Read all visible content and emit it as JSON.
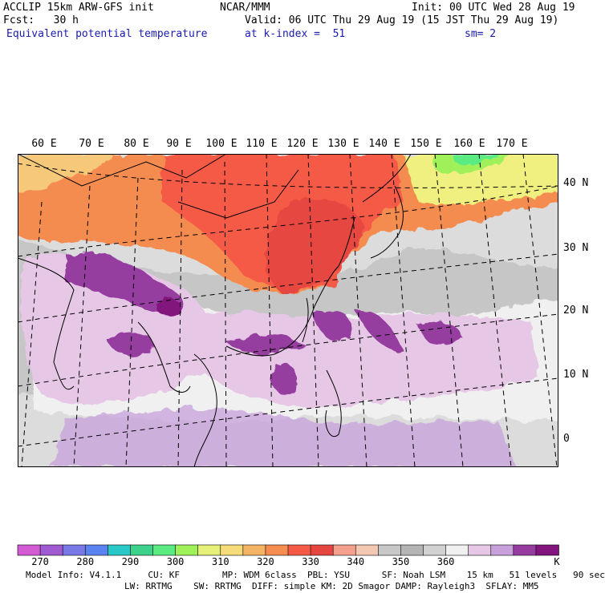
{
  "header": {
    "line1_left": "ACCLIP 15km ARW-GFS init",
    "line1_center": "NCAR/MMM",
    "line1_right": "Init: 00 UTC Wed 28 Aug 19",
    "line2_left": "Fcst:   30 h",
    "line2_right": "Valid: 06 UTC Thu 29 Aug 19 (15 JST Thu 29 Aug 19)",
    "line3_left": "Equivalent potential temperature",
    "line3_center": "at k-index =  51",
    "line3_right": "sm= 2"
  },
  "map": {
    "longitude_labels": [
      "60 E",
      "70 E",
      "80 E",
      "90 E",
      "100 E",
      "110 E",
      "120 E",
      "130 E",
      "140 E",
      "150 E",
      "160 E",
      "170 E"
    ],
    "latitude_labels": [
      "40 N",
      "30 N",
      "20 N",
      "10 N",
      "0"
    ]
  },
  "colorbar": {
    "colors": [
      "#d25ad2",
      "#a05ad2",
      "#7878e6",
      "#5a82f0",
      "#28c8c8",
      "#3cd28c",
      "#5aeb82",
      "#a0f05a",
      "#e6f078",
      "#f5dc78",
      "#f5b464",
      "#f58c50",
      "#f55a46",
      "#e64640",
      "#f5a08c",
      "#f5c8b4",
      "#c8c8c8",
      "#b4b4b4",
      "#d2d2d2",
      "#f0f0f0",
      "#e6c8e6",
      "#c8a0dc",
      "#963ca0",
      "#82147d"
    ],
    "tick_labels": [
      "270",
      "280",
      "290",
      "300",
      "310",
      "320",
      "330",
      "340",
      "350",
      "360"
    ],
    "unit": "K"
  },
  "footer": {
    "line1": "Model Info: V4.1.1     CU: KF        MP: WDM 6class  PBL: YSU      SF: Noah LSM    15 km   51 levels   90 sec",
    "line2": "LW: RRTMG    SW: RRTMG  DIFF: simple KM: 2D Smagor DAMP: Rayleigh3  SFLAY: MM5"
  }
}
